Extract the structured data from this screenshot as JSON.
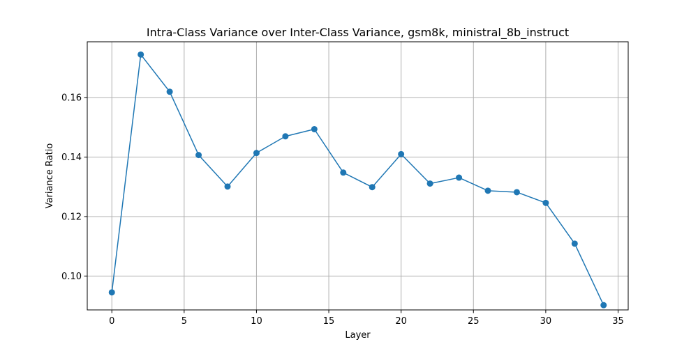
{
  "chart_data": {
    "type": "line",
    "title": "Intra-Class Variance over Inter-Class Variance, gsm8k, ministral_8b_instruct",
    "xlabel": "Layer",
    "ylabel": "Variance Ratio",
    "xlim": [
      -1.7,
      35.7
    ],
    "ylim": [
      0.0886,
      0.1788
    ],
    "x_ticks": [
      0,
      5,
      10,
      15,
      20,
      25,
      30,
      35
    ],
    "y_ticks": [
      0.1,
      0.12,
      0.14,
      0.16
    ],
    "x_tick_labels": [
      "0",
      "5",
      "10",
      "15",
      "20",
      "25",
      "30",
      "35"
    ],
    "y_tick_labels": [
      "0.10",
      "0.12",
      "0.14",
      "0.16"
    ],
    "grid": true,
    "series": [
      {
        "x": [
          0,
          2,
          4,
          6,
          8,
          10,
          12,
          14,
          16,
          18,
          20,
          22,
          24,
          26,
          28,
          30,
          32,
          34
        ],
        "values": [
          0.0945,
          0.1745,
          0.162,
          0.1407,
          0.1301,
          0.1414,
          0.147,
          0.1494,
          0.1348,
          0.1299,
          0.141,
          0.1311,
          0.1331,
          0.1287,
          0.1282,
          0.1246,
          0.1109,
          0.0902
        ],
        "color": "#1f77b4"
      }
    ]
  }
}
